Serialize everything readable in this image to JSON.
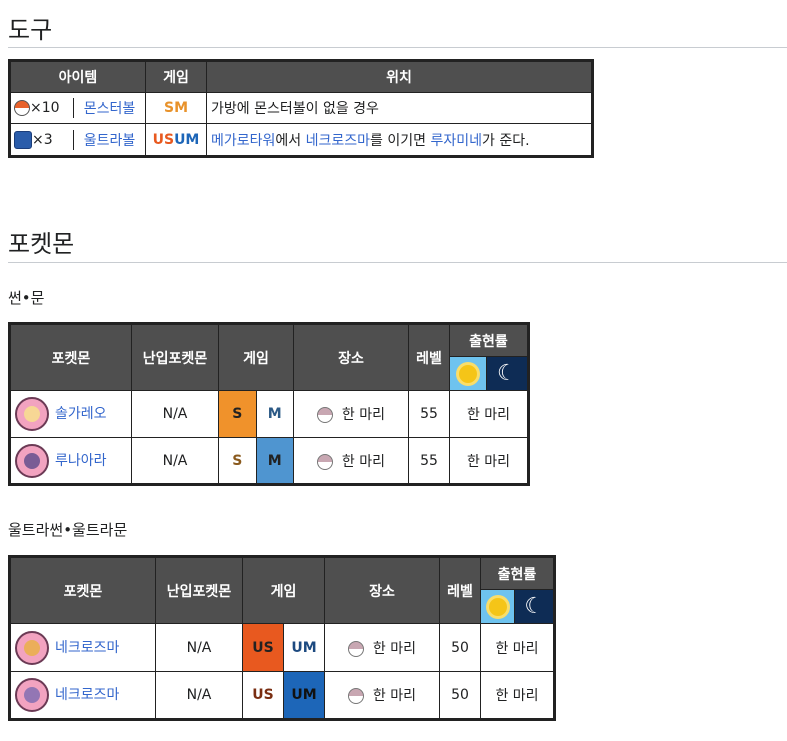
{
  "items_section": {
    "heading": "도구",
    "headers": [
      "아이템",
      "게임",
      "위치"
    ],
    "rows": [
      {
        "qty": "×10",
        "item": "몬스터볼",
        "game_a": "SM",
        "game_b": "",
        "location_plain": "가방에 몬스터볼이 없을 경우"
      },
      {
        "qty": "×3",
        "item": "울트라볼",
        "game_a": "US",
        "game_b": "UM",
        "loc1": "메가로타워",
        "loc2": "에서 ",
        "loc3": "네크로즈마",
        "loc4": "를 이기면 ",
        "loc5": "루자미네",
        "loc6": "가 준다."
      }
    ]
  },
  "pokemon_section": {
    "heading": "포켓몬",
    "sm": {
      "subheading": "썬•문",
      "headers": {
        "pokemon": "포켓몬",
        "ally": "난입포켓몬",
        "game": "게임",
        "place": "장소",
        "level": "레벨",
        "rate": "출현률"
      },
      "rows": [
        {
          "name": "솔가레오",
          "ally": "N/A",
          "g1": "S",
          "g2": "M",
          "place": "한 마리",
          "level": "55",
          "rate": "한 마리"
        },
        {
          "name": "루나아라",
          "ally": "N/A",
          "g1": "S",
          "g2": "M",
          "place": "한 마리",
          "level": "55",
          "rate": "한 마리"
        }
      ]
    },
    "usum": {
      "subheading": "울트라썬•울트라문",
      "headers": {
        "pokemon": "포켓몬",
        "ally": "난입포켓몬",
        "game": "게임",
        "place": "장소",
        "level": "레벨",
        "rate": "출현률"
      },
      "rows": [
        {
          "name": "네크로즈마",
          "ally": "N/A",
          "g1": "US",
          "g2": "UM",
          "place": "한 마리",
          "level": "50",
          "rate": "한 마리"
        },
        {
          "name": "네크로즈마",
          "ally": "N/A",
          "g1": "US",
          "g2": "UM",
          "place": "한 마리",
          "level": "50",
          "rate": "한 마리"
        }
      ]
    }
  },
  "icons": {
    "sun": "sun-icon",
    "moon": "moon-icon"
  },
  "colors": {
    "sun_version": "#f0922b",
    "moon_version": "#4f95d0",
    "ultra_sun": "#e8591f",
    "ultra_moon": "#1d66b8",
    "header_bg": "#4f4f4f"
  }
}
